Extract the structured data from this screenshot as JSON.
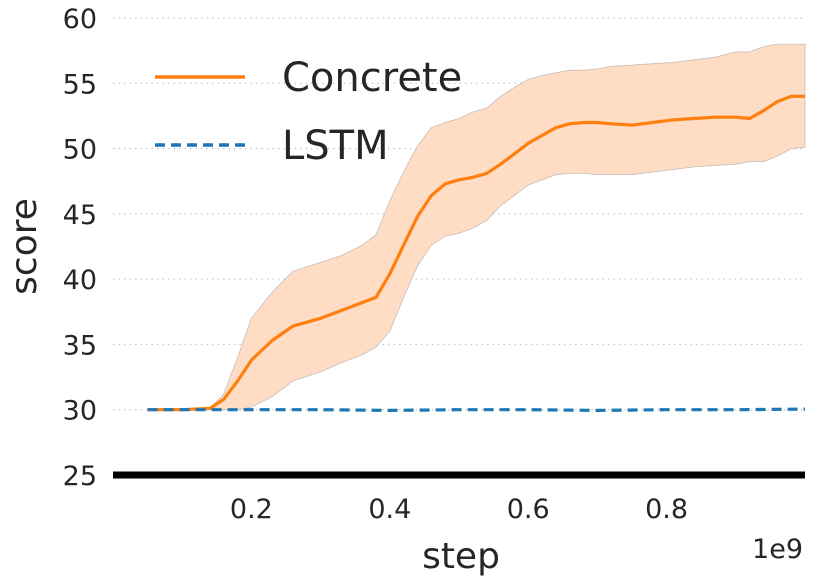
{
  "chart_data": {
    "type": "line",
    "title": "",
    "xlabel": "step",
    "ylabel": "score",
    "x_offset_label": "1e9",
    "xlim": [
      0.0,
      1.0
    ],
    "ylim": [
      25,
      60
    ],
    "xticks": [
      0.2,
      0.4,
      0.6,
      0.8
    ],
    "xtick_labels": [
      "0.2",
      "0.4",
      "0.6",
      "0.8"
    ],
    "yticks": [
      25,
      30,
      35,
      40,
      45,
      50,
      55,
      60
    ],
    "ytick_labels": [
      "25",
      "30",
      "35",
      "40",
      "45",
      "50",
      "55",
      "60"
    ],
    "grid": "horizontal dotted",
    "legend_position": "top-left",
    "series": [
      {
        "name": "Concrete",
        "color": "#ff7f0e",
        "band_color": "#ffdcc4",
        "style": "solid",
        "x": [
          0.05,
          0.1,
          0.14,
          0.16,
          0.18,
          0.2,
          0.23,
          0.26,
          0.3,
          0.33,
          0.36,
          0.38,
          0.4,
          0.42,
          0.44,
          0.46,
          0.48,
          0.5,
          0.52,
          0.54,
          0.56,
          0.58,
          0.6,
          0.62,
          0.64,
          0.66,
          0.68,
          0.7,
          0.72,
          0.75,
          0.78,
          0.81,
          0.84,
          0.87,
          0.9,
          0.92,
          0.94,
          0.96,
          0.98,
          1.0
        ],
        "y": [
          30.0,
          30.0,
          30.1,
          30.8,
          32.2,
          33.8,
          35.3,
          36.4,
          37.0,
          37.6,
          38.2,
          38.6,
          40.4,
          42.6,
          44.8,
          46.4,
          47.3,
          47.6,
          47.8,
          48.1,
          48.8,
          49.6,
          50.4,
          51.0,
          51.6,
          51.9,
          52.0,
          52.0,
          51.9,
          51.8,
          52.0,
          52.2,
          52.3,
          52.4,
          52.4,
          52.3,
          52.9,
          53.6,
          54.0,
          54.0
        ],
        "lower": [
          30.0,
          30.0,
          30.0,
          30.0,
          30.0,
          30.2,
          31.0,
          32.2,
          32.9,
          33.6,
          34.2,
          34.8,
          36.0,
          38.6,
          41.0,
          42.6,
          43.3,
          43.5,
          43.9,
          44.5,
          45.6,
          46.4,
          47.2,
          47.6,
          48.0,
          48.1,
          48.1,
          48.0,
          48.0,
          48.0,
          48.2,
          48.4,
          48.6,
          48.7,
          48.8,
          49.0,
          49.0,
          49.4,
          50.0,
          50.1
        ],
        "upper": [
          30.0,
          30.0,
          30.1,
          31.2,
          34.0,
          37.0,
          39.0,
          40.6,
          41.3,
          41.8,
          42.6,
          43.4,
          46.0,
          48.2,
          50.2,
          51.6,
          52.0,
          52.3,
          52.8,
          53.1,
          54.0,
          54.7,
          55.3,
          55.6,
          55.8,
          56.0,
          56.0,
          56.1,
          56.3,
          56.4,
          56.5,
          56.6,
          56.8,
          57.0,
          57.4,
          57.4,
          57.8,
          58.0,
          58.0,
          58.0
        ]
      },
      {
        "name": "LSTM",
        "color": "#1f77b4",
        "style": "dashed",
        "x": [
          0.05,
          0.12,
          0.2,
          0.3,
          0.4,
          0.5,
          0.6,
          0.7,
          0.8,
          0.9,
          1.0
        ],
        "y": [
          30.0,
          30.0,
          30.0,
          30.0,
          29.95,
          30.0,
          30.0,
          29.95,
          30.0,
          30.0,
          30.05
        ]
      }
    ]
  }
}
